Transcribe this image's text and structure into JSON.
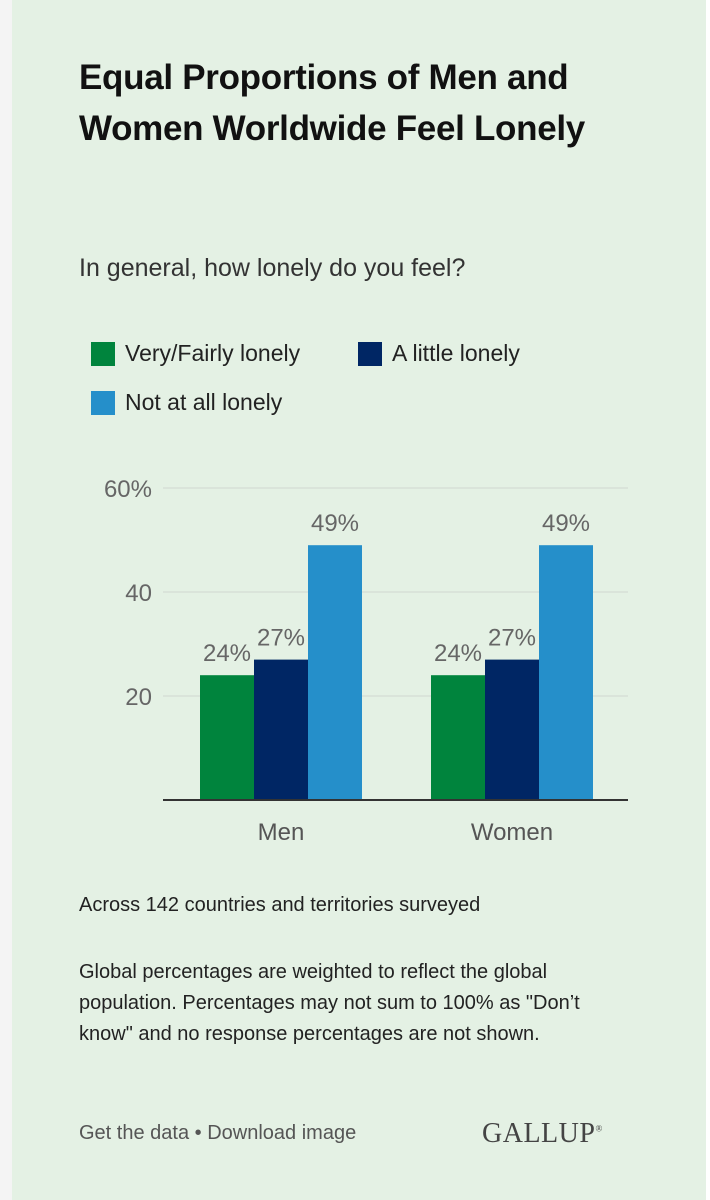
{
  "title": "Equal Proportions of Men and Women Worldwide Feel Lonely",
  "subtitle": "In general, how lonely do you feel?",
  "legend": [
    {
      "label": "Very/Fairly lonely",
      "color": "#00843d"
    },
    {
      "label": "A little lonely",
      "color": "#002664"
    },
    {
      "label": "Not at all lonely",
      "color": "#258fca"
    }
  ],
  "chart_data": {
    "type": "bar",
    "categories": [
      "Men",
      "Women"
    ],
    "series": [
      {
        "name": "Very/Fairly lonely",
        "values": [
          24,
          24
        ],
        "color": "#00843d"
      },
      {
        "name": "A little lonely",
        "values": [
          27,
          27
        ],
        "color": "#002664"
      },
      {
        "name": "Not at all lonely",
        "values": [
          49,
          49
        ],
        "color": "#258fca"
      }
    ],
    "data_labels": [
      [
        "24%",
        "24%"
      ],
      [
        "27%",
        "27%"
      ],
      [
        "49%",
        "49%"
      ]
    ],
    "yticks": [
      {
        "value": 60,
        "label": "60%"
      },
      {
        "value": 40,
        "label": "40"
      },
      {
        "value": 20,
        "label": "20"
      }
    ],
    "ylim": [
      0,
      60
    ],
    "title": "Equal Proportions of Men and Women Worldwide Feel Lonely",
    "xlabel": "",
    "ylabel": ""
  },
  "footnote": "Across 142 countries and territories surveyed",
  "note": "Global percentages are weighted to reflect the global population. Percentages may not sum to 100% as \"Don’t know\" and no response percentages are not shown.",
  "links": {
    "get_data": "Get the data",
    "separator": "•",
    "download": "Download image"
  },
  "brand": {
    "name": "GALLUP",
    "mark": "®"
  }
}
